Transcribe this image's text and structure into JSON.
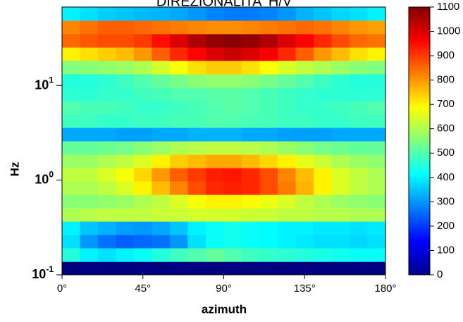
{
  "chart_data": {
    "type": "heatmap",
    "title": "DIREZIONALITA' H/V",
    "xlabel": "azimuth",
    "ylabel": "Hz",
    "x_bins": [
      0,
      10,
      20,
      30,
      40,
      50,
      60,
      70,
      80,
      90,
      100,
      110,
      120,
      130,
      140,
      150,
      160,
      170,
      180
    ],
    "y_bins": [
      0.1,
      0.138,
      0.192,
      0.265,
      0.367,
      0.508,
      0.704,
      0.975,
      1.35,
      1.87,
      2.59,
      3.59,
      4.97,
      6.88,
      9.53,
      13.2,
      18.3,
      25.3,
      35.1,
      48.6,
      67.3
    ],
    "values": [
      [
        0,
        0,
        0,
        0,
        0,
        0,
        0,
        0,
        0,
        0,
        0,
        0,
        0,
        0,
        0,
        0,
        0,
        0
      ],
      [
        450,
        400,
        380,
        400,
        420,
        450,
        480,
        500,
        520,
        500,
        480,
        470,
        460,
        450,
        440,
        430,
        420,
        420
      ],
      [
        380,
        300,
        260,
        240,
        250,
        260,
        300,
        380,
        420,
        430,
        420,
        410,
        400,
        390,
        380,
        380,
        370,
        380
      ],
      [
        400,
        350,
        330,
        310,
        300,
        320,
        350,
        400,
        420,
        430,
        420,
        410,
        400,
        400,
        390,
        390,
        380,
        390
      ],
      [
        600,
        610,
        620,
        620,
        620,
        630,
        630,
        640,
        640,
        640,
        630,
        630,
        620,
        620,
        610,
        610,
        600,
        600
      ],
      [
        560,
        560,
        570,
        580,
        600,
        620,
        650,
        680,
        700,
        700,
        690,
        670,
        650,
        620,
        600,
        580,
        570,
        560
      ],
      [
        600,
        600,
        620,
        650,
        700,
        760,
        820,
        880,
        920,
        930,
        920,
        880,
        830,
        770,
        700,
        650,
        620,
        600
      ],
      [
        620,
        620,
        650,
        680,
        730,
        800,
        860,
        900,
        930,
        940,
        920,
        880,
        820,
        760,
        700,
        650,
        620,
        600
      ],
      [
        580,
        580,
        600,
        620,
        650,
        700,
        740,
        760,
        780,
        780,
        760,
        730,
        700,
        660,
        630,
        600,
        580,
        570
      ],
      [
        520,
        520,
        530,
        540,
        560,
        580,
        600,
        610,
        620,
        620,
        610,
        600,
        580,
        560,
        540,
        530,
        520,
        520
      ],
      [
        320,
        320,
        320,
        310,
        310,
        320,
        320,
        330,
        330,
        330,
        320,
        320,
        310,
        310,
        310,
        320,
        320,
        320
      ],
      [
        480,
        480,
        470,
        470,
        480,
        480,
        490,
        490,
        500,
        500,
        490,
        490,
        480,
        480,
        470,
        470,
        480,
        480
      ],
      [
        500,
        490,
        490,
        480,
        470,
        470,
        480,
        490,
        500,
        510,
        500,
        490,
        480,
        470,
        470,
        480,
        490,
        500
      ],
      [
        460,
        460,
        470,
        470,
        480,
        490,
        500,
        500,
        510,
        510,
        500,
        490,
        480,
        470,
        460,
        460,
        460,
        460
      ],
      [
        450,
        450,
        460,
        480,
        500,
        520,
        540,
        560,
        570,
        570,
        560,
        540,
        520,
        500,
        480,
        460,
        450,
        450
      ],
      [
        550,
        560,
        570,
        580,
        600,
        640,
        680,
        720,
        740,
        740,
        720,
        690,
        650,
        620,
        600,
        580,
        560,
        550
      ],
      [
        700,
        720,
        740,
        760,
        800,
        860,
        920,
        960,
        1000,
        1020,
        1000,
        970,
        920,
        860,
        800,
        760,
        720,
        700
      ],
      [
        850,
        870,
        880,
        880,
        900,
        950,
        1000,
        1050,
        1080,
        1090,
        1080,
        1050,
        1000,
        960,
        920,
        880,
        850,
        840
      ],
      [
        820,
        840,
        860,
        860,
        850,
        840,
        830,
        820,
        810,
        810,
        820,
        830,
        840,
        850,
        840,
        820,
        800,
        790
      ],
      [
        400,
        380,
        360,
        350,
        340,
        330,
        320,
        300,
        280,
        270,
        270,
        280,
        300,
        330,
        350,
        370,
        380,
        400
      ]
    ],
    "xlim": [
      0,
      180
    ],
    "xticks": [
      {
        "value": 0,
        "label": "0°"
      },
      {
        "value": 45,
        "label": "45°"
      },
      {
        "value": 90,
        "label": "90°"
      },
      {
        "value": 135,
        "label": "135°"
      },
      {
        "value": 180,
        "label": "180°"
      }
    ],
    "ylim": [
      0.1,
      67.3
    ],
    "ylog": true,
    "yticks": [
      {
        "value": 0.1,
        "label": "10",
        "exp": "-1"
      },
      {
        "value": 1,
        "label": "10",
        "exp": "0"
      },
      {
        "value": 10,
        "label": "10",
        "exp": "1"
      }
    ],
    "colormap": "jet",
    "clim": [
      0,
      1100
    ],
    "cticks": [
      0,
      100,
      200,
      300,
      400,
      500,
      600,
      700,
      800,
      900,
      1000,
      1100
    ]
  }
}
